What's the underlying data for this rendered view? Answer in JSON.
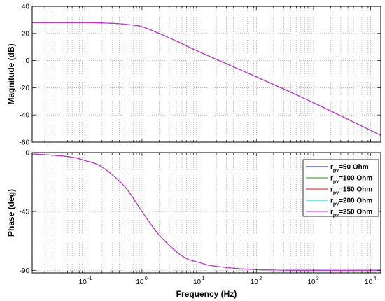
{
  "chart_data": [
    {
      "type": "line",
      "ylabel": "Magnitude (dB)",
      "xscale": "log",
      "xlim": [
        0.012,
        15000
      ],
      "ylim": [
        -60,
        40
      ],
      "yticks": [
        40,
        20,
        0,
        -20,
        -40,
        -60
      ],
      "grid": true,
      "series": [
        {
          "name": "r_pv=50 Ohm",
          "color": "#0000ff",
          "x": [
            0.012,
            0.1,
            0.3,
            0.6,
            1,
            2,
            5,
            10,
            100,
            1000,
            15000
          ],
          "values": [
            28,
            28,
            27.5,
            26.5,
            25,
            20,
            12.5,
            6.5,
            -12,
            -31,
            -55
          ]
        },
        {
          "name": "r_pv=100 Ohm",
          "color": "#00aa00",
          "x": [
            0.012,
            0.1,
            0.3,
            0.6,
            1,
            2,
            5,
            10,
            100,
            1000,
            15000
          ],
          "values": [
            28,
            28,
            27.5,
            26.5,
            25,
            20,
            12.5,
            6.5,
            -12,
            -31,
            -55
          ]
        },
        {
          "name": "r_pv=150 Ohm",
          "color": "#ff0000",
          "x": [
            0.012,
            0.1,
            0.3,
            0.6,
            1,
            2,
            5,
            10,
            100,
            1000,
            15000
          ],
          "values": [
            28,
            28,
            27.5,
            26.5,
            25,
            20,
            12.5,
            6.5,
            -12,
            -31,
            -55
          ]
        },
        {
          "name": "r_pv=200 Ohm",
          "color": "#00cccc",
          "x": [
            0.012,
            0.1,
            0.3,
            0.6,
            1,
            2,
            5,
            10,
            100,
            1000,
            15000
          ],
          "values": [
            28,
            28,
            27.5,
            26.5,
            25,
            20,
            12.5,
            6.5,
            -12,
            -31,
            -55
          ]
        },
        {
          "name": "r_pv=250 Ohm",
          "color": "#dd22dd",
          "x": [
            0.012,
            0.1,
            0.3,
            0.6,
            1,
            2,
            5,
            10,
            100,
            1000,
            15000
          ],
          "values": [
            28,
            28,
            27.5,
            26.5,
            25,
            20,
            12.5,
            6.5,
            -12,
            -31,
            -55
          ]
        }
      ]
    },
    {
      "type": "line",
      "xlabel": "Frequency  (Hz)",
      "ylabel": "Phase (deg)",
      "xscale": "log",
      "xlim": [
        0.012,
        15000
      ],
      "ylim": [
        -92,
        0
      ],
      "yticks": [
        0,
        -45,
        -90
      ],
      "xticks": [
        {
          "base": "10",
          "exp": "-1",
          "value": 0.1
        },
        {
          "base": "10",
          "exp": "0",
          "value": 1
        },
        {
          "base": "10",
          "exp": "1",
          "value": 10
        },
        {
          "base": "10",
          "exp": "2",
          "value": 100
        },
        {
          "base": "10",
          "exp": "3",
          "value": 1000
        },
        {
          "base": "10",
          "exp": "4",
          "value": 10000
        }
      ],
      "grid": true,
      "legend": "top-right",
      "series": [
        {
          "name": "r_pv=50 Ohm",
          "color": "#0000ff",
          "x": [
            0.012,
            0.05,
            0.1,
            0.2,
            0.5,
            1,
            2,
            5,
            10,
            20,
            100,
            1000,
            15000
          ],
          "values": [
            -1,
            -3,
            -6,
            -11,
            -26,
            -45,
            -63,
            -79,
            -84,
            -87,
            -89.5,
            -90,
            -90
          ]
        },
        {
          "name": "r_pv=100 Ohm",
          "color": "#00aa00",
          "x": [
            0.012,
            0.05,
            0.1,
            0.2,
            0.5,
            1,
            2,
            5,
            10,
            20,
            100,
            1000,
            15000
          ],
          "values": [
            -1,
            -3,
            -6,
            -11,
            -26,
            -45,
            -63,
            -79,
            -84,
            -87,
            -89.5,
            -90,
            -90
          ]
        },
        {
          "name": "r_pv=150 Ohm",
          "color": "#ff0000",
          "x": [
            0.012,
            0.05,
            0.1,
            0.2,
            0.5,
            1,
            2,
            5,
            10,
            20,
            100,
            1000,
            15000
          ],
          "values": [
            -1,
            -3,
            -6,
            -11,
            -26,
            -45,
            -63,
            -79,
            -84,
            -87,
            -89.5,
            -90,
            -90
          ]
        },
        {
          "name": "r_pv=200 Ohm",
          "color": "#00cccc",
          "x": [
            0.012,
            0.05,
            0.1,
            0.2,
            0.5,
            1,
            2,
            5,
            10,
            20,
            100,
            1000,
            15000
          ],
          "values": [
            -1,
            -3,
            -6,
            -11,
            -26,
            -45,
            -63,
            -79,
            -84,
            -87,
            -89.5,
            -90,
            -90
          ]
        },
        {
          "name": "r_pv=250 Ohm",
          "color": "#dd22dd",
          "x": [
            0.012,
            0.05,
            0.1,
            0.2,
            0.5,
            1,
            2,
            5,
            10,
            20,
            100,
            1000,
            15000
          ],
          "values": [
            -1,
            -3,
            -6,
            -11,
            -26,
            -45,
            -63,
            -79,
            -84,
            -87,
            -89.5,
            -90,
            -90
          ]
        }
      ]
    }
  ],
  "legend": {
    "entries": [
      {
        "prefix": "r",
        "sub": "pv",
        "suffix": "=50 Ohm",
        "color": "#0000ff"
      },
      {
        "prefix": "r",
        "sub": "pv",
        "suffix": "=100 Ohm",
        "color": "#00aa00"
      },
      {
        "prefix": "r",
        "sub": "pv",
        "suffix": "=150 Ohm",
        "color": "#ff0000"
      },
      {
        "prefix": "r",
        "sub": "pv",
        "suffix": "=200 Ohm",
        "color": "#00cccc"
      },
      {
        "prefix": "r",
        "sub": "pv",
        "suffix": "=250 Ohm",
        "color": "#dd22dd"
      }
    ]
  }
}
